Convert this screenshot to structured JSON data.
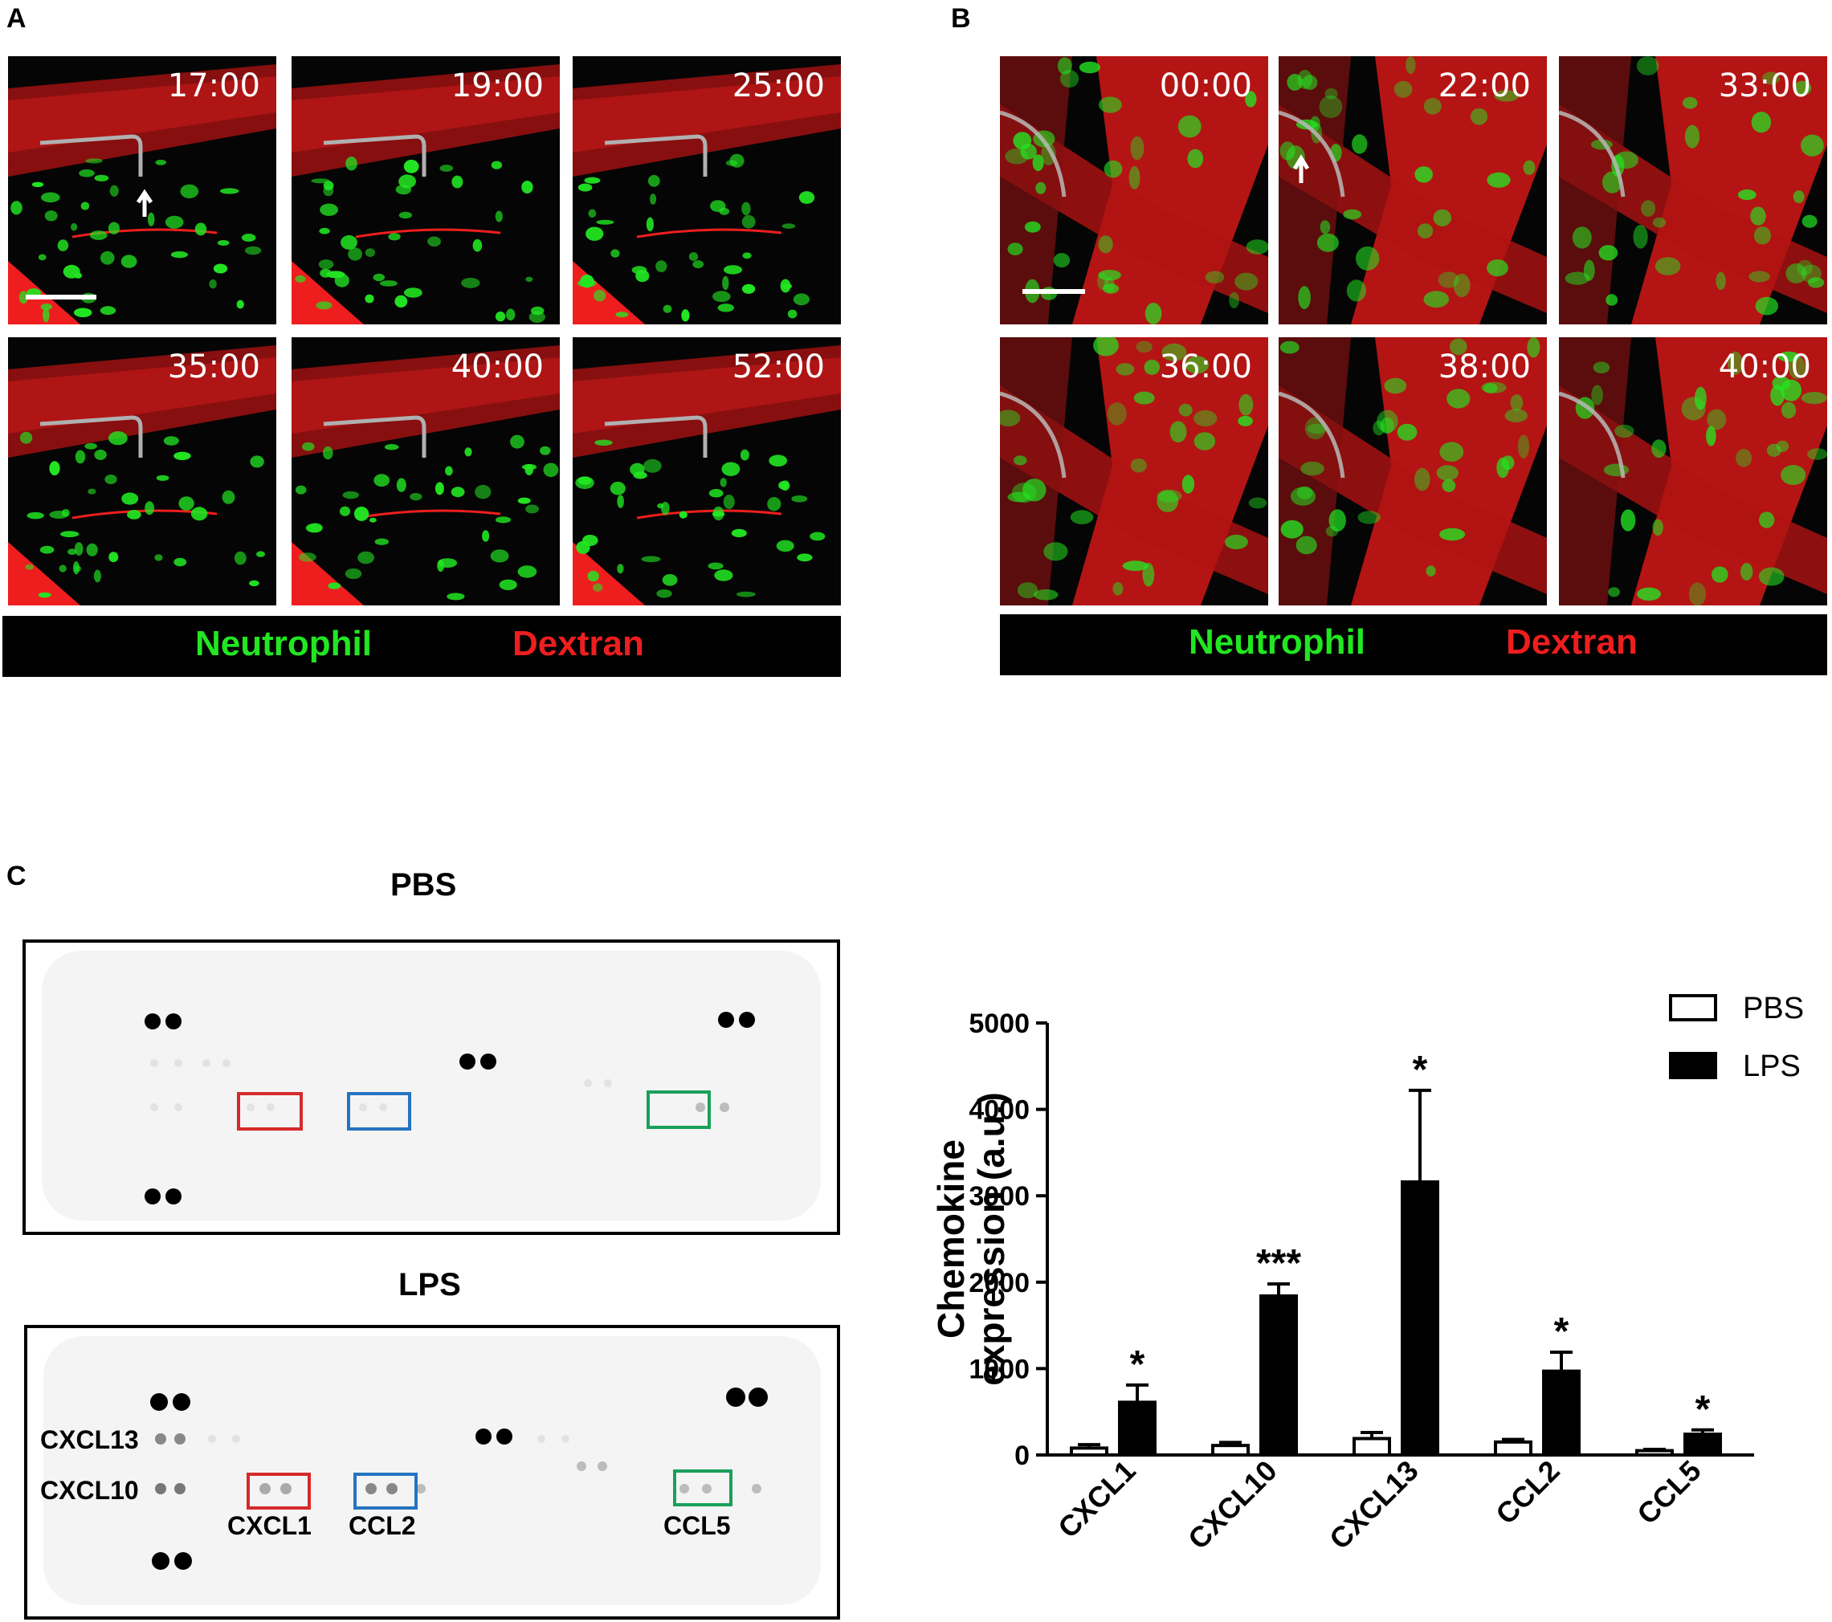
{
  "panel_a": {
    "label": "A",
    "frames": [
      "17:00",
      "19:00",
      "25:00",
      "35:00",
      "40:00",
      "52:00"
    ],
    "legend_green": "Neutrophil",
    "legend_red": "Dextran"
  },
  "panel_b": {
    "label": "B",
    "frames": [
      "00:00",
      "22:00",
      "33:00",
      "36:00",
      "38:00",
      "40:00"
    ],
    "legend_green": "Neutrophil",
    "legend_red": "Dextran"
  },
  "panel_c": {
    "label": "C",
    "blot_pbs_title": "PBS",
    "blot_lps_title": "LPS",
    "blot_side_labels": [
      "CXCL13",
      "CXCL10"
    ],
    "blot_spot_labels": [
      "CXCL1",
      "CCL2",
      "CCL5"
    ],
    "box_colors": {
      "cxcl1": "#d62a2a",
      "ccl2": "#2574c0",
      "ccl5": "#1aa05a"
    },
    "colors": {
      "neutrophil": "#22e622",
      "dextran": "#ee1e1e"
    }
  },
  "chart_data": {
    "type": "bar",
    "categories": [
      "CXCL1",
      "CXCL10",
      "CXCL13",
      "CCL2",
      "CCL5"
    ],
    "series": [
      {
        "name": "PBS",
        "values": [
          80,
          110,
          190,
          150,
          50
        ],
        "errors": [
          40,
          35,
          70,
          30,
          15
        ],
        "fill": "#ffffff"
      },
      {
        "name": "LPS",
        "values": [
          610,
          1840,
          3160,
          970,
          240
        ],
        "errors": [
          200,
          140,
          1060,
          220,
          50
        ],
        "fill": "#000000"
      }
    ],
    "significance": [
      "*",
      "***",
      "*",
      "*",
      "*"
    ],
    "ylabel": [
      "Chemokine",
      "expression (a.u.)"
    ],
    "ylim": [
      0,
      5000
    ],
    "yticks": [
      "0",
      "1000",
      "2000",
      "3000",
      "4000",
      "5000"
    ],
    "legend_position": "top-right"
  }
}
